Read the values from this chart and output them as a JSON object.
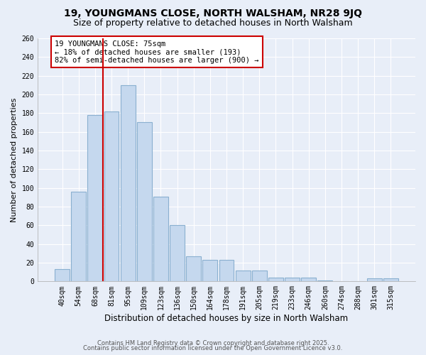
{
  "title": "19, YOUNGMANS CLOSE, NORTH WALSHAM, NR28 9JQ",
  "subtitle": "Size of property relative to detached houses in North Walsham",
  "xlabel": "Distribution of detached houses by size in North Walsham",
  "ylabel": "Number of detached properties",
  "bar_labels": [
    "40sqm",
    "54sqm",
    "68sqm",
    "81sqm",
    "95sqm",
    "109sqm",
    "123sqm",
    "136sqm",
    "150sqm",
    "164sqm",
    "178sqm",
    "191sqm",
    "205sqm",
    "219sqm",
    "233sqm",
    "246sqm",
    "260sqm",
    "274sqm",
    "288sqm",
    "301sqm",
    "315sqm"
  ],
  "bar_values": [
    13,
    96,
    178,
    182,
    210,
    170,
    91,
    60,
    27,
    23,
    23,
    12,
    12,
    4,
    4,
    4,
    1,
    0,
    0,
    3,
    3
  ],
  "bar_color": "#c5d8ee",
  "bar_edge_color": "#8ab0d0",
  "annotation_text": "19 YOUNGMANS CLOSE: 75sqm\n← 18% of detached houses are smaller (193)\n82% of semi-detached houses are larger (900) →",
  "annotation_box_color": "#ffffff",
  "annotation_box_edge": "#cc0000",
  "ref_line_color": "#cc0000",
  "ylim": [
    0,
    260
  ],
  "yticks": [
    0,
    20,
    40,
    60,
    80,
    100,
    120,
    140,
    160,
    180,
    200,
    220,
    240,
    260
  ],
  "background_color": "#e8eef8",
  "grid_color": "#ffffff",
  "footer_line1": "Contains HM Land Registry data © Crown copyright and database right 2025.",
  "footer_line2": "Contains public sector information licensed under the Open Government Licence v3.0.",
  "title_fontsize": 10,
  "subtitle_fontsize": 9,
  "xlabel_fontsize": 8.5,
  "ylabel_fontsize": 8,
  "tick_fontsize": 7,
  "annotation_fontsize": 7.5,
  "footer_fontsize": 6
}
